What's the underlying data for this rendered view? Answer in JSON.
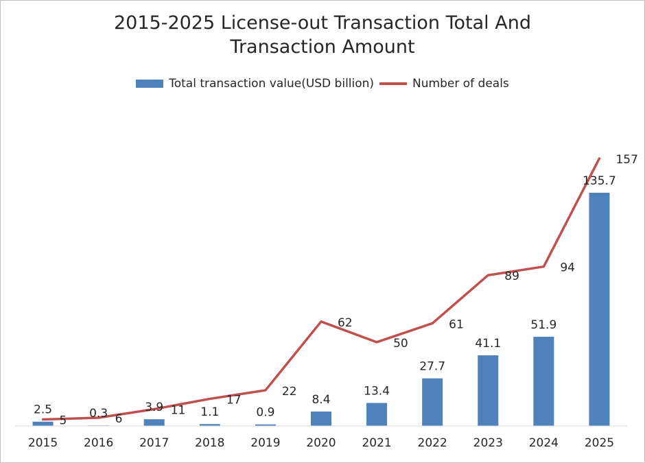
{
  "chart_data": {
    "type": "bar",
    "title_line1": "2015-2025 License-out Transaction Total And",
    "title_line2": "Transaction Amount",
    "categories": [
      "2015",
      "2016",
      "2017",
      "2018",
      "2019",
      "2020",
      "2021",
      "2022",
      "2023",
      "2024",
      "2025"
    ],
    "series": [
      {
        "name": "Total transaction value(USD billion)",
        "type": "bar",
        "color": "#4f81bd",
        "values": [
          2.5,
          0.3,
          3.9,
          1.1,
          0.9,
          8.4,
          13.4,
          27.7,
          41.1,
          51.9,
          135.7
        ],
        "labels": [
          "2.5",
          "0.3",
          "3.9",
          "1.1",
          "0.9",
          "8.4",
          "13.4",
          "27.7",
          "41.1",
          "51.9",
          "135.7"
        ]
      },
      {
        "name": "Number of deals",
        "type": "line",
        "color": "#c0504d",
        "values": [
          5,
          6,
          11,
          17,
          22,
          62,
          50,
          61,
          89,
          94,
          157
        ],
        "labels": [
          "5",
          "6",
          "11",
          "17",
          "22",
          "62",
          "50",
          "61",
          "89",
          "94",
          "157"
        ]
      }
    ],
    "bar_axis_range": [
      0,
      150
    ],
    "line_axis_range": [
      0,
      175
    ],
    "xlabel": "",
    "ylabel": "",
    "grid": false,
    "legend_position": "top"
  }
}
